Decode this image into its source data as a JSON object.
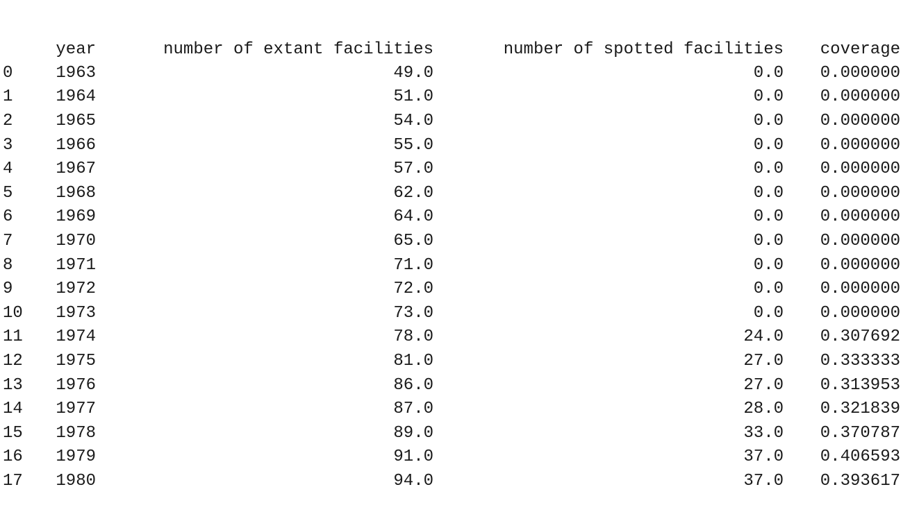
{
  "table": {
    "columns": {
      "index": "",
      "year": "year",
      "extant": "number of extant facilities",
      "spotted": "number of spotted facilities",
      "coverage": "coverage"
    },
    "rows": [
      {
        "index": "0",
        "year": "1963",
        "extant": "49.0",
        "spotted": "0.0",
        "coverage": "0.000000"
      },
      {
        "index": "1",
        "year": "1964",
        "extant": "51.0",
        "spotted": "0.0",
        "coverage": "0.000000"
      },
      {
        "index": "2",
        "year": "1965",
        "extant": "54.0",
        "spotted": "0.0",
        "coverage": "0.000000"
      },
      {
        "index": "3",
        "year": "1966",
        "extant": "55.0",
        "spotted": "0.0",
        "coverage": "0.000000"
      },
      {
        "index": "4",
        "year": "1967",
        "extant": "57.0",
        "spotted": "0.0",
        "coverage": "0.000000"
      },
      {
        "index": "5",
        "year": "1968",
        "extant": "62.0",
        "spotted": "0.0",
        "coverage": "0.000000"
      },
      {
        "index": "6",
        "year": "1969",
        "extant": "64.0",
        "spotted": "0.0",
        "coverage": "0.000000"
      },
      {
        "index": "7",
        "year": "1970",
        "extant": "65.0",
        "spotted": "0.0",
        "coverage": "0.000000"
      },
      {
        "index": "8",
        "year": "1971",
        "extant": "71.0",
        "spotted": "0.0",
        "coverage": "0.000000"
      },
      {
        "index": "9",
        "year": "1972",
        "extant": "72.0",
        "spotted": "0.0",
        "coverage": "0.000000"
      },
      {
        "index": "10",
        "year": "1973",
        "extant": "73.0",
        "spotted": "0.0",
        "coverage": "0.000000"
      },
      {
        "index": "11",
        "year": "1974",
        "extant": "78.0",
        "spotted": "24.0",
        "coverage": "0.307692"
      },
      {
        "index": "12",
        "year": "1975",
        "extant": "81.0",
        "spotted": "27.0",
        "coverage": "0.333333"
      },
      {
        "index": "13",
        "year": "1976",
        "extant": "86.0",
        "spotted": "27.0",
        "coverage": "0.313953"
      },
      {
        "index": "14",
        "year": "1977",
        "extant": "87.0",
        "spotted": "28.0",
        "coverage": "0.321839"
      },
      {
        "index": "15",
        "year": "1978",
        "extant": "89.0",
        "spotted": "33.0",
        "coverage": "0.370787"
      },
      {
        "index": "16",
        "year": "1979",
        "extant": "91.0",
        "spotted": "37.0",
        "coverage": "0.406593"
      },
      {
        "index": "17",
        "year": "1980",
        "extant": "94.0",
        "spotted": "37.0",
        "coverage": "0.393617"
      }
    ]
  }
}
